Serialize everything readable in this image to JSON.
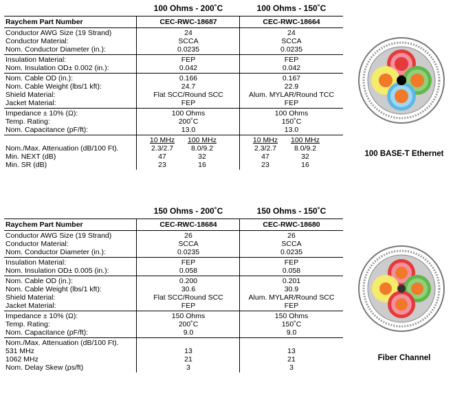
{
  "table1": {
    "col_titles": [
      "100 Ohms - 200˚C",
      "100 Ohms - 150˚C"
    ],
    "header": {
      "label": "Raychem Part Number",
      "values": [
        "CEC-RWC-18687",
        "CEC-RWC-18664"
      ]
    },
    "groups": [
      [
        {
          "label": "Conductor AWG Size (19 Strand)",
          "v": [
            "24",
            "24"
          ]
        },
        {
          "label": "Conductor Material:",
          "v": [
            "SCCA",
            "SCCA"
          ]
        },
        {
          "label": "Nom. Conductor Diameter (in.):",
          "v": [
            "0.0235",
            "0.0235"
          ]
        }
      ],
      [
        {
          "label": "Insulation Material:",
          "v": [
            "FEP",
            "FEP"
          ]
        },
        {
          "label": "Nom. Insulation OD± 0.002 (in.):",
          "v": [
            "0.042",
            "0.042"
          ]
        }
      ],
      [
        {
          "label": "Nom. Cable OD (in.):",
          "v": [
            "0.166",
            "0.167"
          ]
        },
        {
          "label": "Nom. Cable Weight (lbs/1 kft):",
          "v": [
            "24.7",
            "22.9"
          ]
        },
        {
          "label": "Shield Material:",
          "v": [
            "Flat SCC/Round SCC",
            "Alum. MYLAR/Round TCC"
          ]
        },
        {
          "label": "Jacket Material:",
          "v": [
            "FEP",
            "FEP"
          ]
        }
      ],
      [
        {
          "label": "Impedance ± 10% (Ω):",
          "v": [
            "100 Ohms",
            "100 Ohms"
          ]
        },
        {
          "label": "Temp. Rating:",
          "v": [
            "200˚C",
            "150˚C"
          ]
        },
        {
          "label": "Nom. Capacitance (pF/ft):",
          "v": [
            "13.0",
            "13.0"
          ]
        }
      ]
    ],
    "atten": {
      "freq_headers": [
        "10 MHz",
        "100 MHz"
      ],
      "rows": [
        {
          "label": "Nom./Max. Attenuation (dB/100 Ft).",
          "a": [
            "2.3/2.7",
            "8.0/9.2"
          ],
          "b": [
            "2.3/2.7",
            "8.0/9.2"
          ]
        },
        {
          "label": "Min. NEXT (dB)",
          "a": [
            "47",
            "32"
          ],
          "b": [
            "47",
            "32"
          ]
        },
        {
          "label": "Min. SR (dB)",
          "a": [
            "23",
            "16"
          ],
          "b": [
            "23",
            "16"
          ]
        }
      ]
    },
    "caption": "100 BASE-T Ethernet"
  },
  "table2": {
    "col_titles": [
      "150 Ohms - 200˚C",
      "150 Ohms - 150˚C"
    ],
    "header": {
      "label": "Raychem Part Number",
      "values": [
        "CEC-RWC-18684",
        "CEC-RWC-18680"
      ]
    },
    "groups": [
      [
        {
          "label": "Conductor AWG Size (19 Strand)",
          "v": [
            "26",
            "26"
          ]
        },
        {
          "label": "Conductor Material:",
          "v": [
            "SCCA",
            "SCCA"
          ]
        },
        {
          "label": "Nom. Conductor Diameter (in.):",
          "v": [
            "0.0235",
            "0.0235"
          ]
        }
      ],
      [
        {
          "label": "Insulation Material:",
          "v": [
            "FEP",
            "FEP"
          ]
        },
        {
          "label": "Nom. Insulation OD± 0.005 (in.):",
          "v": [
            "0.058",
            "0.058"
          ]
        }
      ],
      [
        {
          "label": "Nom. Cable OD (in.):",
          "v": [
            "0.200",
            "0.201"
          ]
        },
        {
          "label": "Nom. Cable Weight (lbs/1 kft):",
          "v": [
            "30.6",
            "30.9"
          ]
        },
        {
          "label": "Shield Material:",
          "v": [
            "Flat SCC/Round SCC",
            "Alum. MYLAR/Round SCC"
          ]
        },
        {
          "label": "Jacket Material:",
          "v": [
            "FEP",
            "FEP"
          ]
        }
      ],
      [
        {
          "label": "Impedance ± 10% (Ω):",
          "v": [
            "150 Ohms",
            "150 Ohms"
          ]
        },
        {
          "label": "Temp. Rating:",
          "v": [
            "200˚C",
            "150˚C"
          ]
        },
        {
          "label": "Nom. Capacitance (pF/ft):",
          "v": [
            "9.0",
            "9.0"
          ]
        }
      ],
      [
        {
          "label": "Nom./Max. Attenuation (dB/100 Ft).",
          "v": [
            "",
            ""
          ]
        },
        {
          "label": "531 MHz",
          "v": [
            "13",
            "13"
          ]
        },
        {
          "label": "1062 MHz",
          "v": [
            "21",
            "21"
          ]
        },
        {
          "label": "Nom. Delay Skew (ps/ft)",
          "v": [
            "3",
            "3"
          ]
        }
      ]
    ],
    "caption": "Fiber Channel"
  },
  "colors": {
    "red": "#e53a3a",
    "yellow": "#f4ec6a",
    "green": "#5fb84a",
    "blue": "#5cb8e6",
    "orange": "#f07a2a",
    "pink": "#f58fa0"
  }
}
